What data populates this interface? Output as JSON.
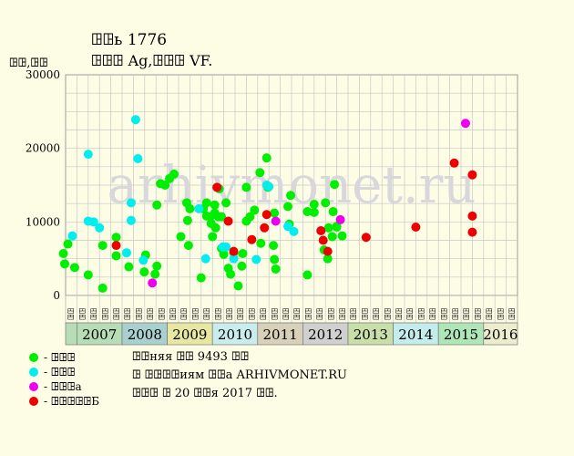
{
  "header": {
    "title": "ꖸꖸь 1776",
    "subtitle": "ꖸꖸꖸ Ag,ꖸꖸꖸ VF.",
    "y_unit": "ꖸꖸ,ꖸꖸ"
  },
  "info": {
    "line1": "ꖸꖸняя ꖸꖸ 9493 ꖸꖸ",
    "line2": "ꖸ ꖸꖸꖸꖸиям ꖸꖸа ARHIVMONET.RU",
    "line3": "ꖸꖸꖸ ꖸ 20 ꖸꖸя 2017 ꖸꖸ."
  },
  "watermark": "arhivmonet.ru",
  "legend": [
    {
      "key": "green",
      "label": "- ꖸꖸꖸ",
      "color": "#00ee00"
    },
    {
      "key": "cyan",
      "label": "- ꖸꖸꖸ",
      "color": "#00eeee"
    },
    {
      "key": "magenta",
      "label": "- ꖸꖸꖸа",
      "color": "#ee00ee"
    },
    {
      "key": "red",
      "label": "- ꖸꖸꖸꖸꖸБ",
      "color": "#ee0000"
    }
  ],
  "chart_data": {
    "type": "scatter",
    "ylim": [
      0,
      30000
    ],
    "y_ticks": [
      0,
      10000,
      20000,
      30000
    ],
    "grid": true,
    "quarter_labels": [
      "ꖸꖸ",
      "ꖸꖸ",
      "ꖸꖸ",
      "ꖸꖸ"
    ],
    "years": [
      {
        "label": "2007",
        "color": "#b6ddb6"
      },
      {
        "label": "2008",
        "color": "#a9cfcf"
      },
      {
        "label": "2009",
        "color": "#e7e7a3"
      },
      {
        "label": "2010",
        "color": "#c9ecec"
      },
      {
        "label": "2011",
        "color": "#d8d0b8"
      },
      {
        "label": "2012",
        "color": "#cfd0cf"
      },
      {
        "label": "2013",
        "color": "#c8dfaa"
      },
      {
        "label": "2014",
        "color": "#c4ecec"
      },
      {
        "label": "2015",
        "color": "#aee6b8"
      },
      {
        "label": "2016",
        "color": "#ececcf"
      }
    ],
    "series": [
      {
        "key": "green",
        "points": [
          [
            2006.95,
            5700
          ],
          [
            2006.98,
            4300
          ],
          [
            2007.05,
            7000
          ],
          [
            2007.2,
            3800
          ],
          [
            2007.5,
            2800
          ],
          [
            2007.82,
            6800
          ],
          [
            2007.82,
            1000
          ],
          [
            2008.12,
            7900
          ],
          [
            2008.12,
            5400
          ],
          [
            2008.4,
            3900
          ],
          [
            2008.74,
            3200
          ],
          [
            2008.77,
            5500
          ],
          [
            2008.98,
            2900
          ],
          [
            2009.02,
            4000
          ],
          [
            2009.02,
            12300
          ],
          [
            2009.1,
            15200
          ],
          [
            2009.2,
            15000
          ],
          [
            2009.3,
            15900
          ],
          [
            2009.4,
            16500
          ],
          [
            2009.55,
            8000
          ],
          [
            2009.68,
            12600
          ],
          [
            2009.7,
            10200
          ],
          [
            2009.72,
            6800
          ],
          [
            2009.75,
            11800
          ],
          [
            2010.0,
            2400
          ],
          [
            2010.05,
            11800
          ],
          [
            2010.12,
            12600
          ],
          [
            2010.12,
            10800
          ],
          [
            2010.2,
            10700
          ],
          [
            2010.22,
            9800
          ],
          [
            2010.25,
            8000
          ],
          [
            2010.3,
            11200
          ],
          [
            2010.3,
            12300
          ],
          [
            2010.32,
            9200
          ],
          [
            2010.38,
            10700
          ],
          [
            2010.4,
            14500
          ],
          [
            2010.45,
            6400
          ],
          [
            2010.45,
            10700
          ],
          [
            2010.5,
            5600
          ],
          [
            2010.55,
            12600
          ],
          [
            2010.6,
            3700
          ],
          [
            2010.65,
            2900
          ],
          [
            2010.72,
            5800
          ],
          [
            2010.82,
            1300
          ],
          [
            2010.9,
            4000
          ],
          [
            2010.92,
            5700
          ],
          [
            2011.0,
            10100
          ],
          [
            2011.0,
            14700
          ],
          [
            2011.08,
            10700
          ],
          [
            2011.18,
            11600
          ],
          [
            2011.3,
            16700
          ],
          [
            2011.32,
            7100
          ],
          [
            2011.45,
            18700
          ],
          [
            2011.48,
            14700
          ],
          [
            2011.6,
            6800
          ],
          [
            2011.62,
            4900
          ],
          [
            2011.65,
            3600
          ],
          [
            2011.62,
            11200
          ],
          [
            2011.92,
            12100
          ],
          [
            2011.95,
            9700
          ],
          [
            2011.98,
            13600
          ],
          [
            2012.35,
            11400
          ],
          [
            2012.35,
            2800
          ],
          [
            2012.5,
            12400
          ],
          [
            2012.5,
            11300
          ],
          [
            2012.72,
            6200
          ],
          [
            2012.8,
            5000
          ],
          [
            2012.75,
            12600
          ],
          [
            2012.82,
            9200
          ],
          [
            2012.9,
            8000
          ],
          [
            2012.92,
            11400
          ],
          [
            2012.95,
            15100
          ],
          [
            2013.0,
            9300
          ],
          [
            2013.0,
            9400
          ],
          [
            2013.12,
            8100
          ]
        ]
      },
      {
        "key": "cyan",
        "points": [
          [
            2007.15,
            8100
          ],
          [
            2007.5,
            10100
          ],
          [
            2007.5,
            19200
          ],
          [
            2007.62,
            10000
          ],
          [
            2007.75,
            9200
          ],
          [
            2008.35,
            5800
          ],
          [
            2008.45,
            10200
          ],
          [
            2008.45,
            12600
          ],
          [
            2008.55,
            23900
          ],
          [
            2008.6,
            18600
          ],
          [
            2008.72,
            4800
          ],
          [
            2009.95,
            11800
          ],
          [
            2010.1,
            5000
          ],
          [
            2010.48,
            6600
          ],
          [
            2010.55,
            6600
          ],
          [
            2010.72,
            5000
          ],
          [
            2011.45,
            15000
          ],
          [
            2011.5,
            14800
          ],
          [
            2011.22,
            4900
          ],
          [
            2011.92,
            9400
          ],
          [
            2012.05,
            8700
          ]
        ]
      },
      {
        "key": "magenta",
        "points": [
          [
            2008.92,
            1700
          ],
          [
            2011.65,
            10100
          ],
          [
            2013.08,
            10300
          ],
          [
            2015.85,
            23400
          ]
        ]
      },
      {
        "key": "red",
        "points": [
          [
            2008.12,
            6800
          ],
          [
            2010.35,
            14700
          ],
          [
            2010.6,
            10100
          ],
          [
            2010.72,
            6000
          ],
          [
            2011.12,
            7600
          ],
          [
            2011.4,
            9200
          ],
          [
            2011.45,
            11000
          ],
          [
            2012.65,
            8800
          ],
          [
            2012.7,
            7500
          ],
          [
            2012.8,
            6000
          ],
          [
            2013.65,
            7900
          ],
          [
            2014.75,
            9300
          ],
          [
            2015.6,
            18000
          ],
          [
            2016.0,
            16400
          ],
          [
            2016.0,
            10800
          ],
          [
            2016.0,
            8600
          ]
        ]
      }
    ]
  }
}
